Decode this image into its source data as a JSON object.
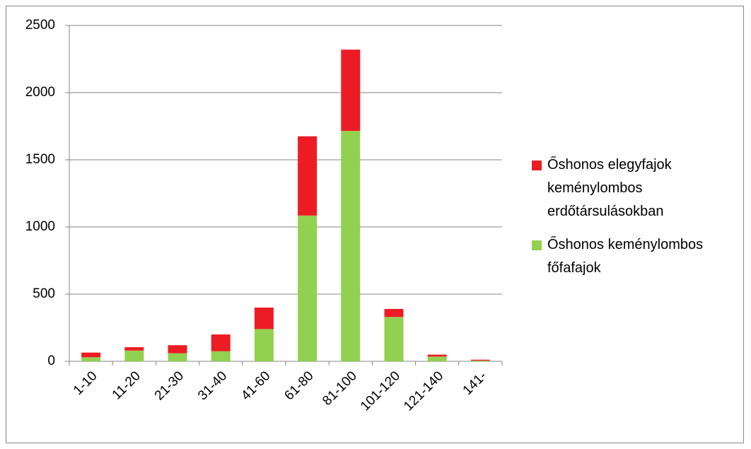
{
  "chart_data": {
    "type": "bar",
    "stacked": true,
    "categories": [
      "1-10",
      "11-20",
      "21-30",
      "31-40",
      "41-60",
      "61-80",
      "81-100",
      "101-120",
      "121-140",
      "141-"
    ],
    "series": [
      {
        "name": "Őshonos keménylombos főfafajok",
        "color": "#92d050",
        "values": [
          30,
          80,
          60,
          75,
          240,
          1085,
          1715,
          330,
          35,
          5
        ]
      },
      {
        "name": "Őshonos elegyfajok keménylombos erdőtársulásokban",
        "color": "#ed1c24",
        "values": [
          35,
          25,
          60,
          125,
          160,
          590,
          605,
          60,
          15,
          7
        ]
      }
    ],
    "ylim": [
      0,
      2500
    ],
    "yticks": [
      0,
      500,
      1000,
      1500,
      2000,
      2500
    ],
    "grid": true
  }
}
